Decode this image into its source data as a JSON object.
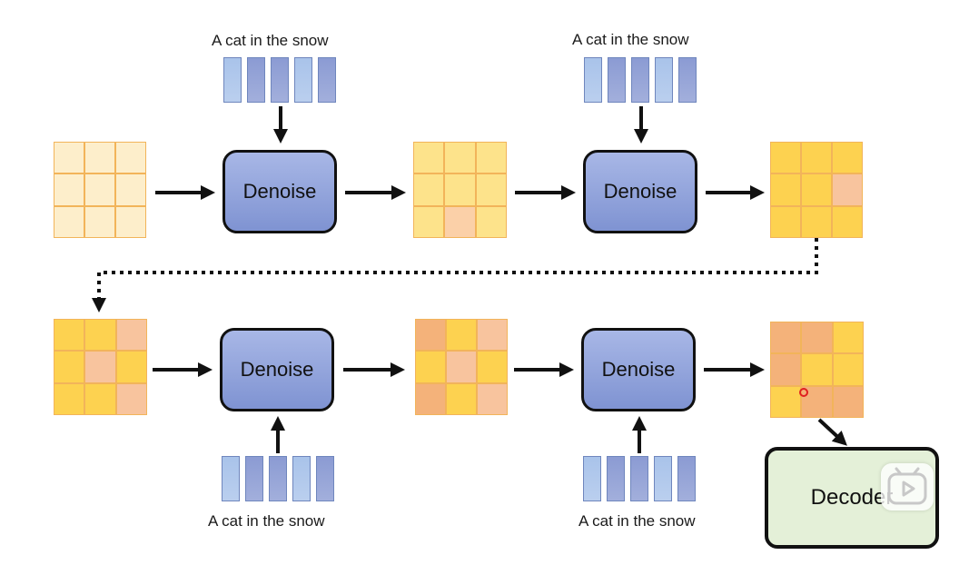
{
  "captions": [
    "A cat in the snow",
    "A cat in the snow",
    "A cat in the snow",
    "A cat in the snow"
  ],
  "denoise_label": "Denoise",
  "decoder_label": "Decoder",
  "colors": {
    "box_fill_top": "#a8b7e6",
    "box_fill_bottom": "#7f93d2",
    "decoder_fill": "#e4f0d8",
    "token_light": "#a9c3ea",
    "token_dark": "#8b9bd3",
    "cream": "#fdeecb",
    "light_yellow": "#fde38b",
    "peach_light": "#fbd0a8",
    "gold": "#fdd250",
    "peach": "#f8c49e",
    "orange": "#f4b27a"
  },
  "latent_grids": [
    [
      "cream",
      "cream",
      "cream",
      "cream",
      "cream",
      "cream",
      "cream",
      "cream",
      "cream"
    ],
    [
      "light_yellow",
      "light_yellow",
      "light_yellow",
      "light_yellow",
      "light_yellow",
      "light_yellow",
      "light_yellow",
      "peach_light",
      "light_yellow"
    ],
    [
      "gold",
      "gold",
      "gold",
      "gold",
      "gold",
      "peach",
      "gold",
      "gold",
      "gold"
    ],
    [
      "gold",
      "gold",
      "peach",
      "gold",
      "peach",
      "gold",
      "gold",
      "gold",
      "peach"
    ],
    [
      "orange",
      "gold",
      "peach",
      "gold",
      "peach",
      "gold",
      "orange",
      "gold",
      "peach"
    ],
    [
      "orange",
      "orange",
      "gold",
      "orange",
      "gold",
      "gold",
      "gold",
      "orange",
      "orange"
    ]
  ],
  "token_colors": [
    "token_light",
    "token_dark",
    "token_dark",
    "token_light",
    "token_dark"
  ],
  "icons": [
    "play-icon",
    "pointer-dot-icon"
  ]
}
